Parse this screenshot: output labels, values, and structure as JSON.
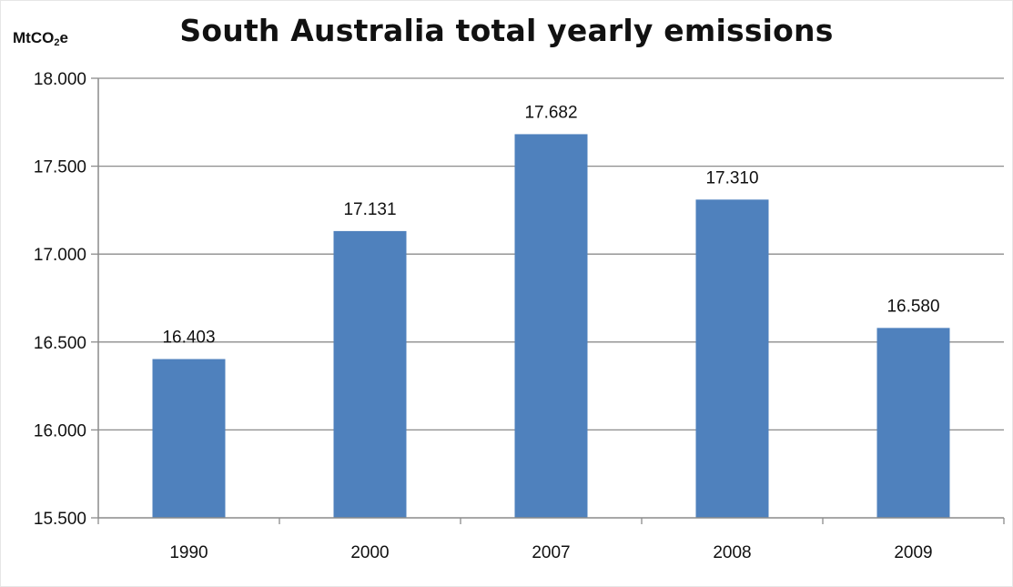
{
  "chart_data": {
    "type": "bar",
    "title": "South Australia total yearly emissions",
    "ylabel_prefix": "MtCO",
    "ylabel_sub": "2",
    "ylabel_suffix": "e",
    "categories": [
      "1990",
      "2000",
      "2007",
      "2008",
      "2009"
    ],
    "values": [
      16.403,
      17.131,
      17.682,
      17.31,
      16.58
    ],
    "data_labels": [
      "16.403",
      "17.131",
      "17.682",
      "17.310",
      "16.580"
    ],
    "ylim": [
      15.5,
      18.0
    ],
    "yticks": [
      15.5,
      16.0,
      16.5,
      17.0,
      17.5,
      18.0
    ],
    "ytick_labels": [
      "15.500",
      "16.000",
      "16.500",
      "17.000",
      "17.500",
      "18.000"
    ],
    "grid": true,
    "legend": "none",
    "bar_color": "#4f81bd",
    "grid_color": "#8c8c8c"
  }
}
